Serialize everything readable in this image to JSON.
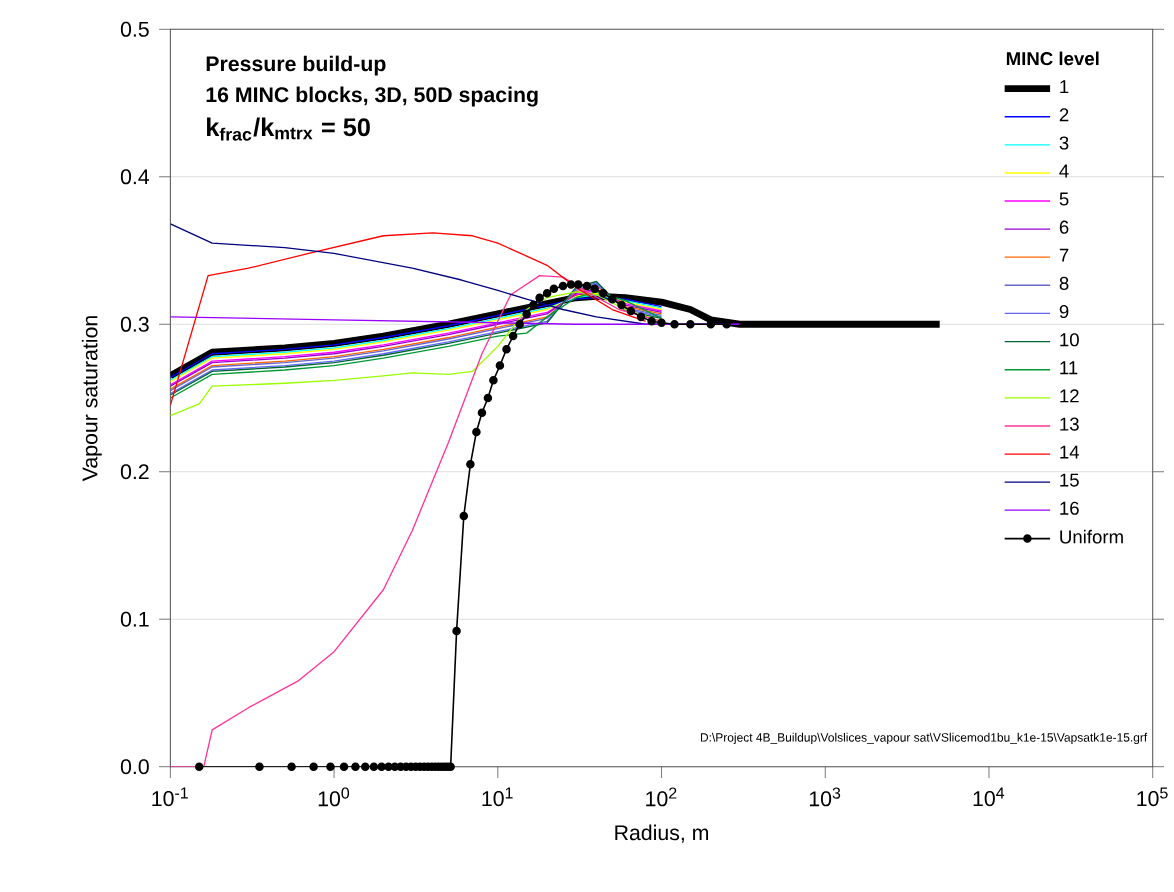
{
  "chart_data": {
    "type": "line",
    "xlabel": "Radius, m",
    "ylabel": "Vapour saturation",
    "legend_title": "MINC level",
    "annotations": [
      "Pressure build-up",
      "16 MINC blocks, 3D, 50D spacing",
      "k$_{frac}$/k$_{mtrx}$ = 50",
      "D:\\Project 4B_Buildup\\Volslices_vapour sat\\VSlicemod1bu_k1e-15\\Vapsatk1e-15.grf"
    ],
    "log": "x",
    "xlim": [
      0.1,
      100000
    ],
    "ylim": [
      0,
      0.5
    ],
    "xticks": [
      {
        "value": 0.1,
        "label": "10$^{-1}$"
      },
      {
        "value": 1,
        "label": "10$^{0}$"
      },
      {
        "value": 10,
        "label": "10$^{1}$"
      },
      {
        "value": 100,
        "label": "10$^{2}$"
      },
      {
        "value": 1000,
        "label": "10$^{3}$"
      },
      {
        "value": 10000,
        "label": "10$^{4}$"
      },
      {
        "value": 100000,
        "label": "10$^{5}$"
      }
    ],
    "yticks": [
      {
        "value": 0,
        "label": "0.0"
      },
      {
        "value": 0.1,
        "label": "0.1"
      },
      {
        "value": 0.2,
        "label": "0.2"
      },
      {
        "value": 0.3,
        "label": "0.3"
      },
      {
        "value": 0.4,
        "label": "0.4"
      },
      {
        "value": 0.5,
        "label": "0.5"
      }
    ],
    "grid": "y",
    "legend": "top right",
    "line_style": "solid",
    "series": [
      {
        "name": "1",
        "color": "#000000",
        "x": [
          0.1,
          0.18,
          0.5,
          1,
          2,
          5,
          10,
          20,
          30,
          40,
          60,
          100,
          150,
          200,
          300,
          1000,
          5000
        ],
        "values": [
          0.265,
          0.281,
          0.284,
          0.287,
          0.292,
          0.3,
          0.307,
          0.314,
          0.318,
          0.319,
          0.318,
          0.315,
          0.31,
          0.303,
          0.3,
          0.3,
          0.3
        ]
      },
      {
        "name": "2",
        "color": "#0000ff",
        "x": [
          0.1,
          0.18,
          0.5,
          1,
          2,
          5,
          10,
          20,
          30,
          40,
          60,
          100
        ],
        "values": [
          0.264,
          0.28,
          0.283,
          0.286,
          0.291,
          0.299,
          0.306,
          0.313,
          0.317,
          0.318,
          0.317,
          0.312
        ]
      },
      {
        "name": "3",
        "color": "#00ffff",
        "x": [
          0.1,
          0.18,
          0.5,
          1,
          2,
          5,
          10,
          20,
          30,
          40,
          60,
          100
        ],
        "values": [
          0.262,
          0.278,
          0.281,
          0.284,
          0.289,
          0.297,
          0.304,
          0.311,
          0.318,
          0.32,
          0.316,
          0.311
        ]
      },
      {
        "name": "4",
        "color": "#ffff00",
        "x": [
          0.1,
          0.18,
          0.5,
          1,
          2,
          5,
          10,
          20,
          30,
          40,
          60,
          100
        ],
        "values": [
          0.261,
          0.277,
          0.28,
          0.283,
          0.288,
          0.296,
          0.303,
          0.31,
          0.319,
          0.321,
          0.315,
          0.31
        ]
      },
      {
        "name": "5",
        "color": "#ff00ff",
        "x": [
          0.1,
          0.18,
          0.5,
          1,
          2,
          5,
          10,
          20,
          30,
          40,
          60,
          100
        ],
        "values": [
          0.259,
          0.275,
          0.278,
          0.281,
          0.286,
          0.294,
          0.301,
          0.308,
          0.32,
          0.323,
          0.314,
          0.309
        ]
      },
      {
        "name": "6",
        "color": "#9900cc",
        "x": [
          0.1,
          0.18,
          0.5,
          1,
          2,
          5,
          10,
          20,
          30,
          40,
          60,
          100
        ],
        "values": [
          0.258,
          0.274,
          0.277,
          0.28,
          0.285,
          0.293,
          0.3,
          0.307,
          0.321,
          0.324,
          0.313,
          0.308
        ]
      },
      {
        "name": "7",
        "color": "#ff6600",
        "x": [
          0.1,
          0.18,
          0.5,
          1,
          2,
          5,
          10,
          20,
          30,
          40,
          60,
          100
        ],
        "values": [
          0.256,
          0.272,
          0.275,
          0.278,
          0.283,
          0.291,
          0.298,
          0.305,
          0.322,
          0.326,
          0.312,
          0.307
        ]
      },
      {
        "name": "8",
        "color": "#6666cc",
        "x": [
          0.1,
          0.18,
          0.5,
          1,
          2,
          5,
          10,
          20,
          30,
          40,
          60,
          100
        ],
        "values": [
          0.255,
          0.271,
          0.274,
          0.277,
          0.282,
          0.29,
          0.297,
          0.304,
          0.323,
          0.327,
          0.311,
          0.306
        ]
      },
      {
        "name": "9",
        "color": "#6666ff",
        "x": [
          0.1,
          0.18,
          0.5,
          1,
          2,
          5,
          10,
          20,
          30,
          40,
          60,
          100
        ],
        "values": [
          0.253,
          0.269,
          0.272,
          0.275,
          0.28,
          0.288,
          0.295,
          0.302,
          0.324,
          0.328,
          0.31,
          0.305
        ]
      },
      {
        "name": "10",
        "color": "#006633",
        "x": [
          0.1,
          0.18,
          0.5,
          1,
          2,
          5,
          10,
          20,
          30,
          40,
          60,
          100
        ],
        "values": [
          0.252,
          0.268,
          0.271,
          0.274,
          0.279,
          0.287,
          0.294,
          0.301,
          0.325,
          0.329,
          0.309,
          0.304
        ]
      },
      {
        "name": "11",
        "color": "#009933",
        "x": [
          0.1,
          0.18,
          0.5,
          1,
          2,
          5,
          10,
          15,
          20,
          30,
          40,
          60,
          100
        ],
        "values": [
          0.25,
          0.266,
          0.269,
          0.272,
          0.277,
          0.285,
          0.292,
          0.294,
          0.305,
          0.318,
          0.322,
          0.316,
          0.304
        ]
      },
      {
        "name": "12",
        "color": "#99ff00",
        "x": [
          0.1,
          0.15,
          0.18,
          0.5,
          1,
          2,
          3,
          5,
          7,
          10,
          15,
          20,
          30,
          40,
          60,
          100
        ],
        "values": [
          0.238,
          0.246,
          0.258,
          0.26,
          0.262,
          0.265,
          0.267,
          0.266,
          0.268,
          0.285,
          0.31,
          0.318,
          0.322,
          0.32,
          0.31,
          0.302
        ]
      },
      {
        "name": "13",
        "color": "#ff3399",
        "x": [
          0.1,
          0.16,
          0.18,
          0.3,
          0.6,
          1,
          2,
          3,
          5,
          8,
          12,
          18,
          25,
          35,
          55,
          100
        ],
        "values": [
          0,
          0,
          0.025,
          0.04,
          0.058,
          0.078,
          0.12,
          0.16,
          0.22,
          0.28,
          0.32,
          0.333,
          0.332,
          0.322,
          0.31,
          0.302
        ]
      },
      {
        "name": "14",
        "color": "#ff0000",
        "x": [
          0.1,
          0.17,
          0.3,
          0.7,
          2,
          4,
          7,
          10,
          20,
          30,
          50,
          80
        ],
        "values": [
          0.245,
          0.333,
          0.338,
          0.348,
          0.36,
          0.362,
          0.36,
          0.355,
          0.34,
          0.325,
          0.31,
          0.302
        ]
      },
      {
        "name": "15",
        "color": "#000080",
        "x": [
          0.1,
          0.18,
          0.5,
          1,
          3,
          6,
          10,
          15,
          25,
          40,
          80,
          150,
          300
        ],
        "values": [
          0.368,
          0.355,
          0.352,
          0.348,
          0.338,
          0.33,
          0.323,
          0.317,
          0.31,
          0.305,
          0.3,
          0.3,
          0.3
        ]
      },
      {
        "name": "16",
        "color": "#9900ff",
        "x": [
          0.1,
          1,
          10,
          30,
          100,
          300
        ],
        "values": [
          0.305,
          0.303,
          0.301,
          0.3,
          0.3,
          0.3
        ]
      },
      {
        "name": "Uniform",
        "color": "#000000",
        "marker": "circle",
        "x": [
          0.15,
          0.35,
          0.55,
          0.75,
          0.95,
          1.15,
          1.35,
          1.55,
          1.75,
          1.95,
          2.15,
          2.35,
          2.55,
          2.75,
          2.95,
          3.15,
          3.35,
          3.55,
          3.75,
          3.95,
          4.15,
          4.35,
          4.55,
          4.75,
          4.95,
          5.15,
          5.6,
          6.2,
          6.8,
          7.4,
          8.0,
          8.7,
          9.4,
          10.3,
          11.3,
          12.4,
          13.6,
          15,
          16.5,
          18,
          20,
          22,
          25,
          28,
          31,
          35,
          39,
          44,
          50,
          57,
          65,
          75,
          87,
          100,
          120,
          150,
          200,
          250
        ],
        "values": [
          0,
          0,
          0,
          0,
          0,
          0,
          0,
          0,
          0,
          0,
          0,
          0,
          0,
          0,
          0,
          0,
          0,
          0,
          0,
          0,
          0,
          0,
          0,
          0,
          0,
          0,
          0.092,
          0.17,
          0.205,
          0.227,
          0.24,
          0.25,
          0.262,
          0.272,
          0.283,
          0.292,
          0.3,
          0.307,
          0.313,
          0.318,
          0.321,
          0.324,
          0.326,
          0.327,
          0.327,
          0.326,
          0.324,
          0.321,
          0.317,
          0.313,
          0.309,
          0.305,
          0.302,
          0.301,
          0.3,
          0.3,
          0.3,
          0.3
        ]
      }
    ]
  }
}
